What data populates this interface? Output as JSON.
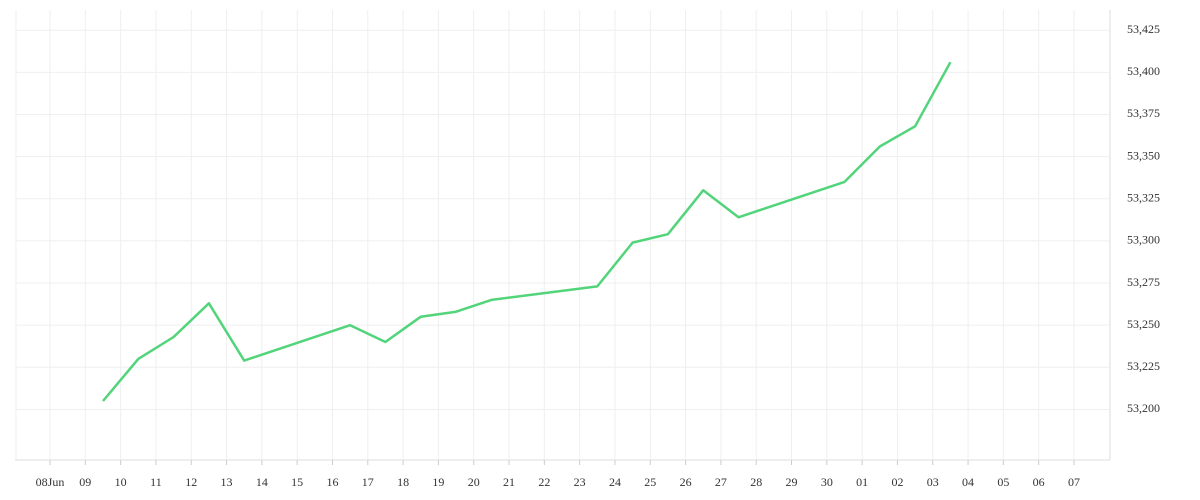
{
  "chart_data": {
    "type": "line",
    "categories": [
      "08Jun",
      "09",
      "10",
      "11",
      "12",
      "13",
      "14",
      "15",
      "16",
      "17",
      "18",
      "19",
      "20",
      "21",
      "22",
      "23",
      "24",
      "25",
      "26",
      "27",
      "28",
      "29",
      "30",
      "01",
      "02",
      "03",
      "04",
      "05",
      "06",
      "07"
    ],
    "series": [
      {
        "color": "#52d47a",
        "x": [
          "09",
          "10",
          "11",
          "12",
          "13",
          "16",
          "17",
          "18",
          "19",
          "20",
          "23",
          "24",
          "25",
          "26",
          "27",
          "30",
          "01",
          "02",
          "03"
        ],
        "values": [
          53205,
          53230,
          53243,
          53263,
          53229,
          53250,
          53240,
          53255,
          53258,
          53265,
          53273,
          53299,
          53304,
          53330,
          53314,
          53335,
          53356,
          53368,
          53406
        ]
      }
    ],
    "ylim": [
      53170,
      53437
    ],
    "yticks": [
      {
        "value": 53200,
        "label": "53,200"
      },
      {
        "value": 53225,
        "label": "53,225"
      },
      {
        "value": 53250,
        "label": "53,250"
      },
      {
        "value": 53275,
        "label": "53,275"
      },
      {
        "value": 53300,
        "label": "53,300"
      },
      {
        "value": 53325,
        "label": "53,325"
      },
      {
        "value": 53350,
        "label": "53,350"
      },
      {
        "value": 53375,
        "label": "53,375"
      },
      {
        "value": 53400,
        "label": "53,400"
      },
      {
        "value": 53425,
        "label": "53,425"
      }
    ],
    "grid": true
  }
}
